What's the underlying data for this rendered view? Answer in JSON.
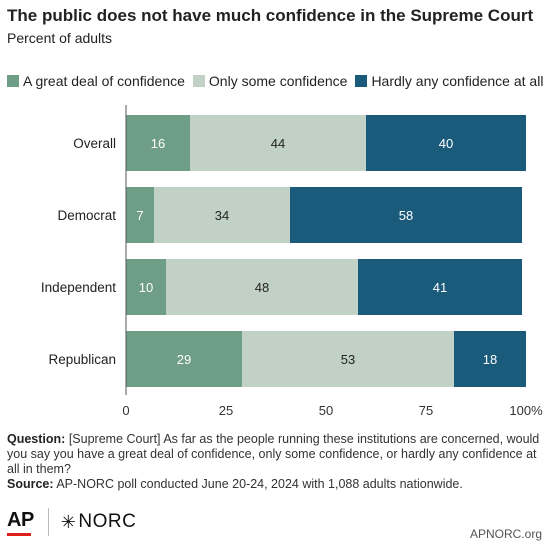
{
  "title": "The public does not have much confidence in the Supreme Court",
  "subtitle": "Percent of adults",
  "legend": [
    {
      "label": "A great deal of confidence",
      "color": "#6e9e85"
    },
    {
      "label": "Only some confidence",
      "color": "#c1d1c6"
    },
    {
      "label": "Hardly any confidence at all",
      "color": "#1a5a7a"
    }
  ],
  "chart_data": {
    "type": "bar",
    "orientation": "horizontal",
    "stacked": true,
    "categories": [
      "Overall",
      "Democrat",
      "Independent",
      "Republican"
    ],
    "series": [
      {
        "name": "A great deal of confidence",
        "color": "#6e9e85",
        "label_color": "#ffffff",
        "values": [
          16,
          7,
          10,
          29
        ]
      },
      {
        "name": "Only some confidence",
        "color": "#c1d1c6",
        "label_color": "#222222",
        "values": [
          44,
          34,
          48,
          53
        ]
      },
      {
        "name": "Hardly any confidence at all",
        "color": "#1a5a7a",
        "label_color": "#ffffff",
        "values": [
          40,
          58,
          41,
          18
        ]
      }
    ],
    "xlim": [
      0,
      100
    ],
    "x_ticks": [
      "0",
      "25",
      "50",
      "75",
      "100%"
    ],
    "grid": false,
    "legend_position": "top"
  },
  "footer": {
    "question_label": "Question:",
    "question_text": "[Supreme Court] As far as the people running these institutions are concerned, would you say you have a great deal of confidence, only some confidence, or hardly any confidence at all in them?",
    "source_label": "Source:",
    "source_text": "AP-NORC poll conducted June 20-24, 2024 with 1,088 adults nationwide."
  },
  "logos": {
    "ap": "AP",
    "norc": "NORC",
    "norc_mark": "✳"
  },
  "site": "APNORC.org"
}
